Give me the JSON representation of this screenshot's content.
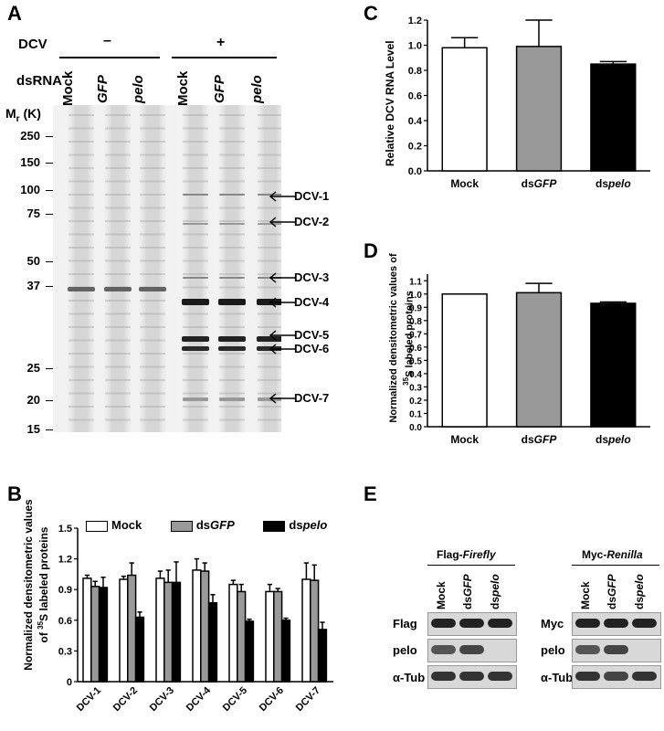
{
  "panel_labels": {
    "a": "A",
    "b": "B",
    "c": "C",
    "d": "D",
    "e": "E"
  },
  "gel": {
    "dcv_label": "DCV",
    "minus": "–",
    "plus": "+",
    "dsrna_label": "dsRNA",
    "lanes": [
      "Mock",
      "GFP",
      "pelo",
      "Mock",
      "GFP",
      "pelo"
    ],
    "mr_label_main": "M",
    "mr_label_sub": "r",
    "mr_label_unit": " (K)",
    "markers": [
      "250",
      "150",
      "100",
      "75",
      "50",
      "37",
      "25",
      "20",
      "15"
    ],
    "dcv_bands": [
      "DCV-1",
      "DCV-2",
      "DCV-3",
      "DCV-4",
      "DCV-5",
      "DCV-6",
      "DCV-7"
    ]
  },
  "chart_data": [
    {
      "panel": "C",
      "type": "bar",
      "ylabel": "Relative DCV RNA Level",
      "categories": [
        "Mock",
        "dsGFP",
        "dspelo"
      ],
      "values": [
        0.98,
        0.99,
        0.85
      ],
      "errors": [
        0.08,
        0.21,
        0.02
      ],
      "ylim": [
        0,
        1.2
      ],
      "yticks": [
        "0.0",
        "0.2",
        "0.4",
        "0.6",
        "0.8",
        "1.0",
        "1.2"
      ]
    },
    {
      "panel": "D",
      "type": "bar",
      "ylabel": "Normalized densitometric values of 35S labeled proteins",
      "categories": [
        "Mock",
        "dsGFP",
        "dspelo"
      ],
      "values": [
        1.0,
        1.01,
        0.93
      ],
      "errors": [
        0.0,
        0.07,
        0.01
      ],
      "ylim": [
        0,
        1.15
      ],
      "yticks": [
        "0.0",
        "0.1",
        "0.2",
        "0.3",
        "0.4",
        "0.5",
        "0.6",
        "0.7",
        "0.8",
        "0.9",
        "1.0",
        "1.1"
      ]
    },
    {
      "panel": "B",
      "type": "bar",
      "ylabel": "Normalized densitometric values of 35S labeled proteins",
      "categories": [
        "DCV-1",
        "DCV-2",
        "DCV-3",
        "DCV-4",
        "DCV-5",
        "DCV-6",
        "DCV-7"
      ],
      "series": [
        {
          "name": "Mock",
          "values": [
            1.01,
            1.0,
            1.01,
            1.09,
            0.95,
            0.88,
            1.0
          ],
          "errors": [
            0.03,
            0.03,
            0.07,
            0.11,
            0.04,
            0.07,
            0.16
          ]
        },
        {
          "name": "dsGFP",
          "values": [
            0.93,
            1.04,
            0.97,
            1.08,
            0.88,
            0.88,
            0.99
          ],
          "errors": [
            0.05,
            0.12,
            0.12,
            0.08,
            0.07,
            0.03,
            0.15
          ]
        },
        {
          "name": "dspelo",
          "values": [
            0.92,
            0.63,
            0.97,
            0.77,
            0.59,
            0.6,
            0.51
          ],
          "errors": [
            0.1,
            0.05,
            0.2,
            0.08,
            0.02,
            0.02,
            0.07
          ]
        }
      ],
      "ylim": [
        0,
        1.5
      ],
      "yticks": [
        "0",
        "0.3",
        "0.6",
        "0.9",
        "1.2",
        "1.5"
      ]
    }
  ],
  "panel_e": {
    "left": {
      "title_pre": "Flag-",
      "title_it": "Firefly",
      "lanes": [
        "Mock",
        "dsGFP",
        "dspelo"
      ],
      "rows": [
        "Flag",
        "pelo",
        "α-Tub"
      ]
    },
    "right": {
      "title_pre": "Myc-",
      "title_it": "Renilla",
      "lanes": [
        "Mock",
        "dsGFP",
        "dspelo"
      ],
      "rows": [
        "Myc",
        "pelo",
        "α-Tub"
      ]
    }
  },
  "colors": {
    "mock": "#ffffff",
    "gfp": "#999999",
    "pelo": "#000000"
  }
}
